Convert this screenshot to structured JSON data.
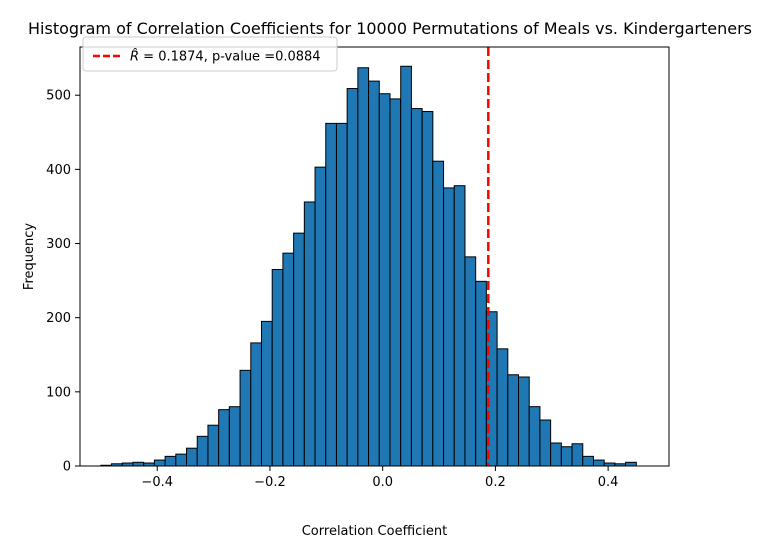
{
  "chart_data": {
    "type": "histogram",
    "title": "Histogram of Correlation Coefficients for 10000 Permutations of Meals vs. Kindergarteners",
    "xlabel": "Correlation Coefficient",
    "ylabel": "Frequency",
    "xlim": [
      -0.537,
      0.508
    ],
    "ylim": [
      0,
      565
    ],
    "x_ticks": [
      -0.4,
      -0.2,
      0.0,
      0.2,
      0.4
    ],
    "x_tick_labels": [
      "−0.4",
      "−0.2",
      "0.0",
      "0.2",
      "0.4"
    ],
    "y_ticks": [
      0,
      100,
      200,
      300,
      400,
      500
    ],
    "y_tick_labels": [
      "0",
      "100",
      "200",
      "300",
      "400",
      "500"
    ],
    "bin_start": -0.5,
    "bin_width": 0.019,
    "counts": [
      1,
      3,
      4,
      5,
      4,
      8,
      13,
      16,
      24,
      40,
      55,
      76,
      80,
      129,
      166,
      195,
      265,
      287,
      314,
      356,
      403,
      462,
      462,
      509,
      537,
      519,
      502,
      495,
      539,
      482,
      478,
      411,
      375,
      378,
      282,
      249,
      208,
      158,
      123,
      120,
      80,
      62,
      31,
      26,
      30,
      13,
      8,
      4,
      3,
      5
    ],
    "bar_color": "#1f77b4",
    "bar_edge_color": "#000000",
    "grid": false,
    "vline": {
      "x": 0.1874,
      "color": "#ff0000",
      "style": "dashed"
    },
    "legend": {
      "location": "upper-left",
      "entries": [
        {
          "label_prefix": "R̂",
          "label_suffix": " = 0.1874, p-value =0.0884",
          "color": "#ff0000",
          "style": "dashed"
        }
      ]
    }
  }
}
